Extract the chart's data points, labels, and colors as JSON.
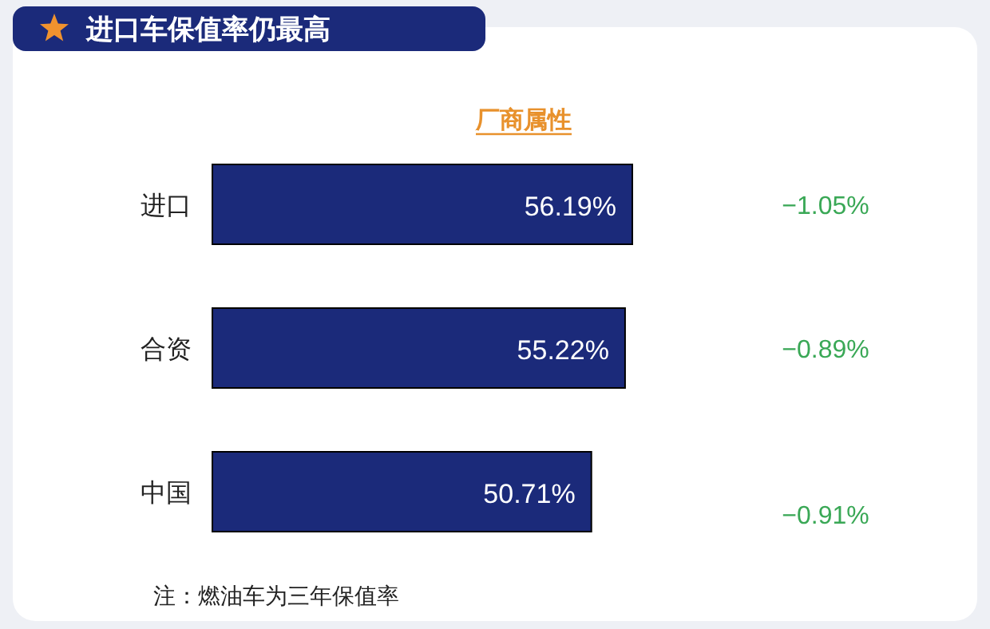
{
  "chart_data": {
    "type": "bar",
    "orientation": "horizontal",
    "title": "进口车保值率仍最高",
    "subtitle": "厂商属性",
    "categories": [
      "进口",
      "合资",
      "中国"
    ],
    "values": [
      56.19,
      55.22,
      50.71
    ],
    "value_labels": [
      "56.19%",
      "55.22%",
      "50.71%"
    ],
    "color": "#1b2a7a",
    "tick_labels": "y",
    "annotations": [
      "−1.05%",
      "−0.89%",
      "−0.91%",
      "注：燃油车为三年保值率"
    ]
  }
}
